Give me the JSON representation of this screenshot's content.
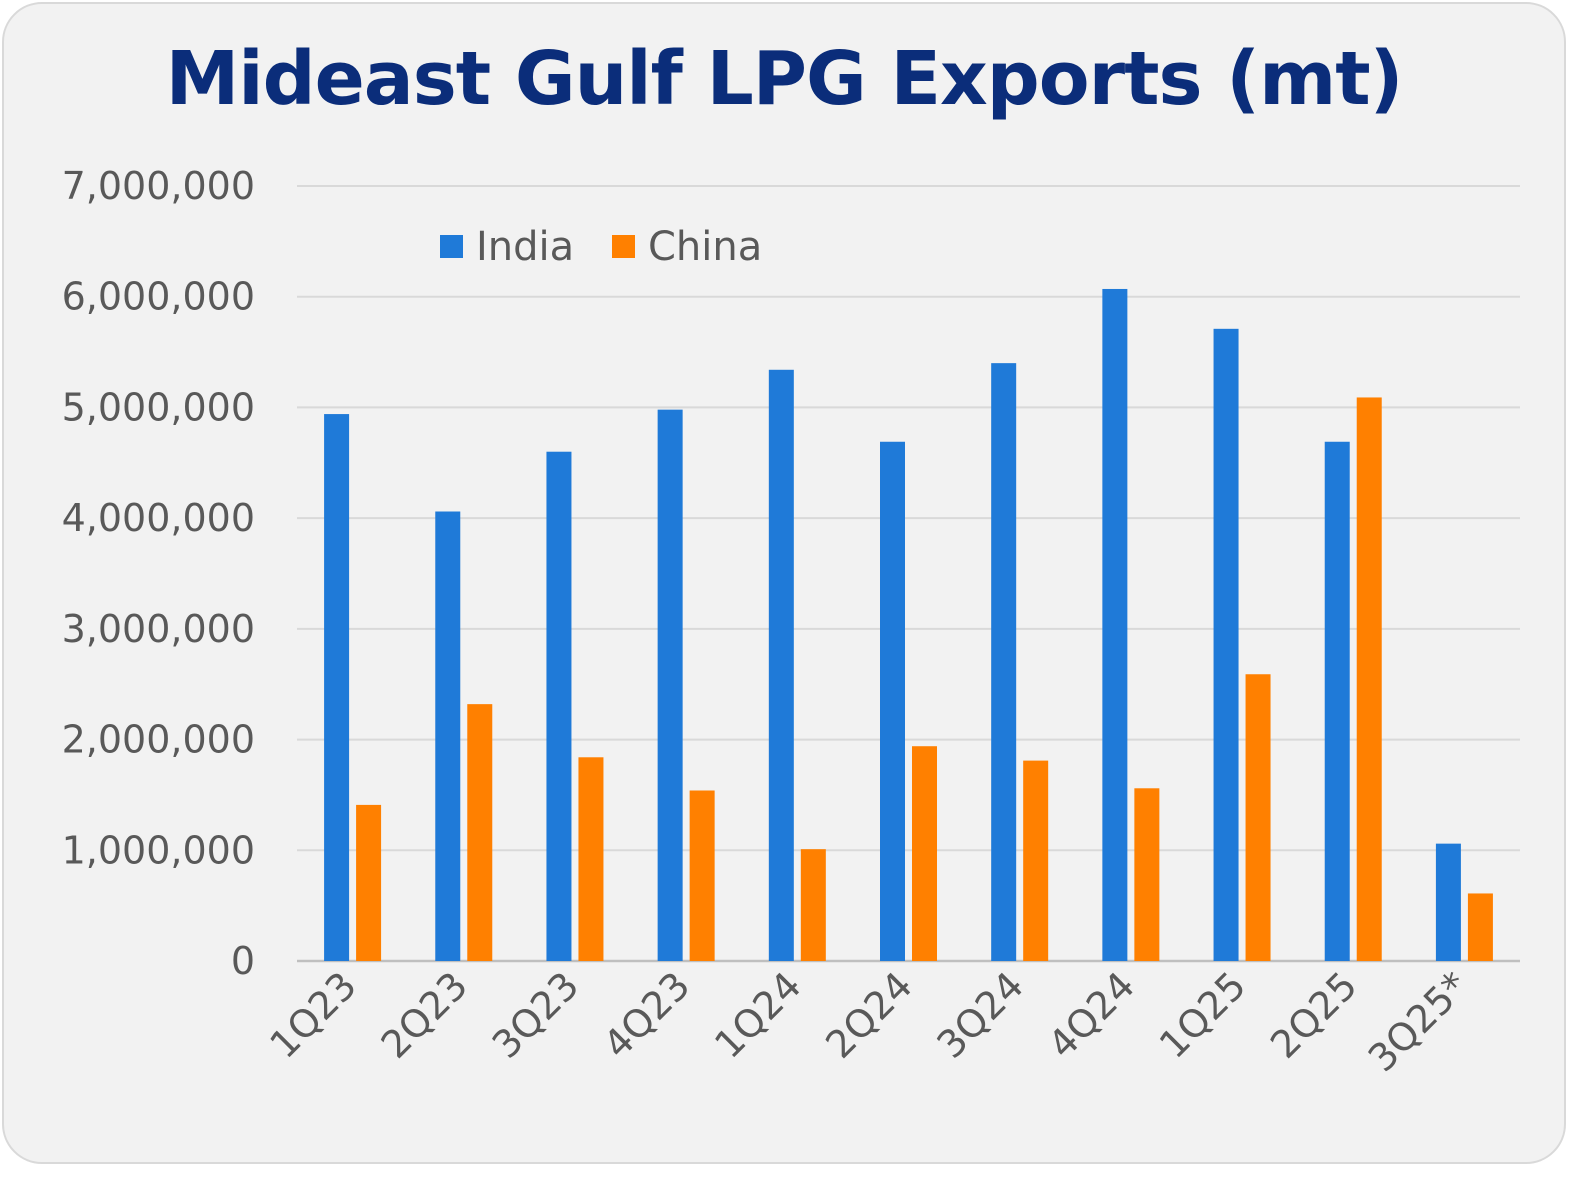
{
  "chart_data": {
    "type": "bar",
    "title": "Mideast Gulf LPG Exports (mt)",
    "xlabel": "",
    "ylabel": "",
    "ylim": [
      0,
      7000000
    ],
    "y_ticks": [
      0,
      1000000,
      2000000,
      3000000,
      4000000,
      5000000,
      6000000,
      7000000
    ],
    "y_tick_labels": [
      "0",
      "1,000,000",
      "2,000,000",
      "3,000,000",
      "4,000,000",
      "5,000,000",
      "6,000,000",
      "7,000,000"
    ],
    "grid": true,
    "legend_position": "top-left",
    "categories": [
      "1Q23",
      "2Q23",
      "3Q23",
      "4Q23",
      "1Q24",
      "2Q24",
      "3Q24",
      "4Q24",
      "1Q25",
      "2Q25",
      "3Q25*"
    ],
    "series": [
      {
        "name": "India",
        "color": "#1f7ad8",
        "values": [
          4940000,
          4060000,
          4600000,
          4980000,
          5340000,
          4690000,
          5400000,
          6070000,
          5710000,
          4690000,
          1060000
        ]
      },
      {
        "name": "China",
        "color": "#ff8000",
        "values": [
          1410000,
          2320000,
          1840000,
          1540000,
          1010000,
          1940000,
          1810000,
          1560000,
          2590000,
          5090000,
          610000
        ]
      }
    ]
  }
}
